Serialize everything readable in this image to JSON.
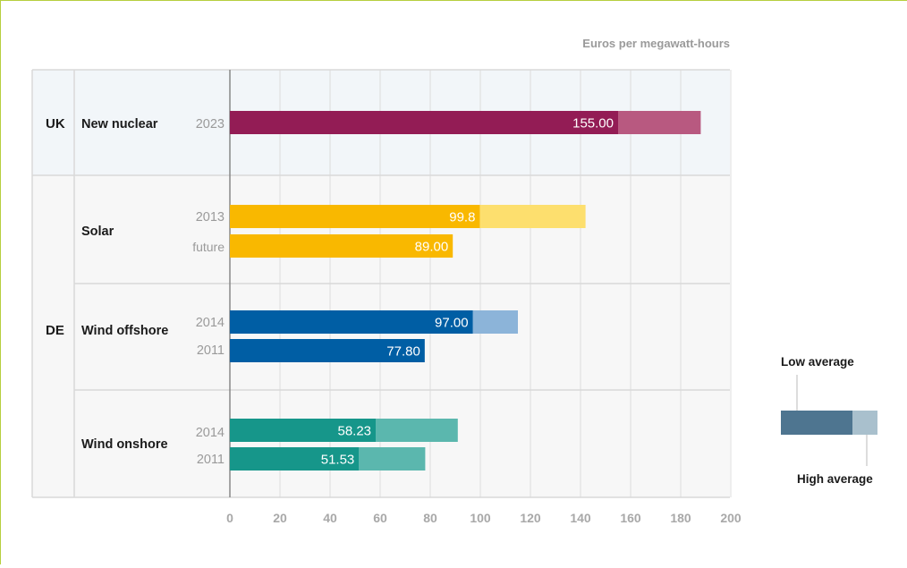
{
  "chart_data": {
    "type": "bar",
    "unit_label": "Euros per megawatt-hours",
    "xlim": [
      0,
      200
    ],
    "x_ticks": [
      "0",
      "20",
      "40",
      "60",
      "80",
      "100",
      "120",
      "140",
      "160",
      "180",
      "200"
    ],
    "grid": true,
    "groups": [
      {
        "country": "UK",
        "technologies": [
          {
            "name": "New nuclear",
            "bars": [
              {
                "year": "2023",
                "low": 155.0,
                "high": 188,
                "label": "155.00",
                "color_low": "#931c55",
                "color_high": "#b85980"
              }
            ]
          }
        ]
      },
      {
        "country": "DE",
        "technologies": [
          {
            "name": "Solar",
            "bars": [
              {
                "year": "2013",
                "low": 99.8,
                "high": 142,
                "label": "99.8",
                "color_low": "#f9b800",
                "color_high": "#fddf6e"
              },
              {
                "year": "future",
                "low": 89.0,
                "high": null,
                "label": "89.00",
                "color_low": "#f9b800",
                "color_high": null
              }
            ]
          },
          {
            "name": "Wind offshore",
            "bars": [
              {
                "year": "2014",
                "low": 97.0,
                "high": 115,
                "label": "97.00",
                "color_low": "#005ea4",
                "color_high": "#8cb4d9"
              },
              {
                "year": "2011",
                "low": 77.8,
                "high": null,
                "label": "77.80",
                "color_low": "#005ea4",
                "color_high": null
              }
            ]
          },
          {
            "name": "Wind onshore",
            "bars": [
              {
                "year": "2014",
                "low": 58.23,
                "high": 91,
                "label": "58.23",
                "color_low": "#16968a",
                "color_high": "#5bb7ae"
              },
              {
                "year": "2011",
                "low": 51.53,
                "high": 78,
                "label": "51.53",
                "color_low": "#16968a",
                "color_high": "#5bb7ae"
              }
            ]
          }
        ]
      }
    ]
  },
  "legend": {
    "low_label": "Low average",
    "high_label": "High average",
    "color_low": "#4e7590",
    "color_high": "#a9c0cd"
  }
}
